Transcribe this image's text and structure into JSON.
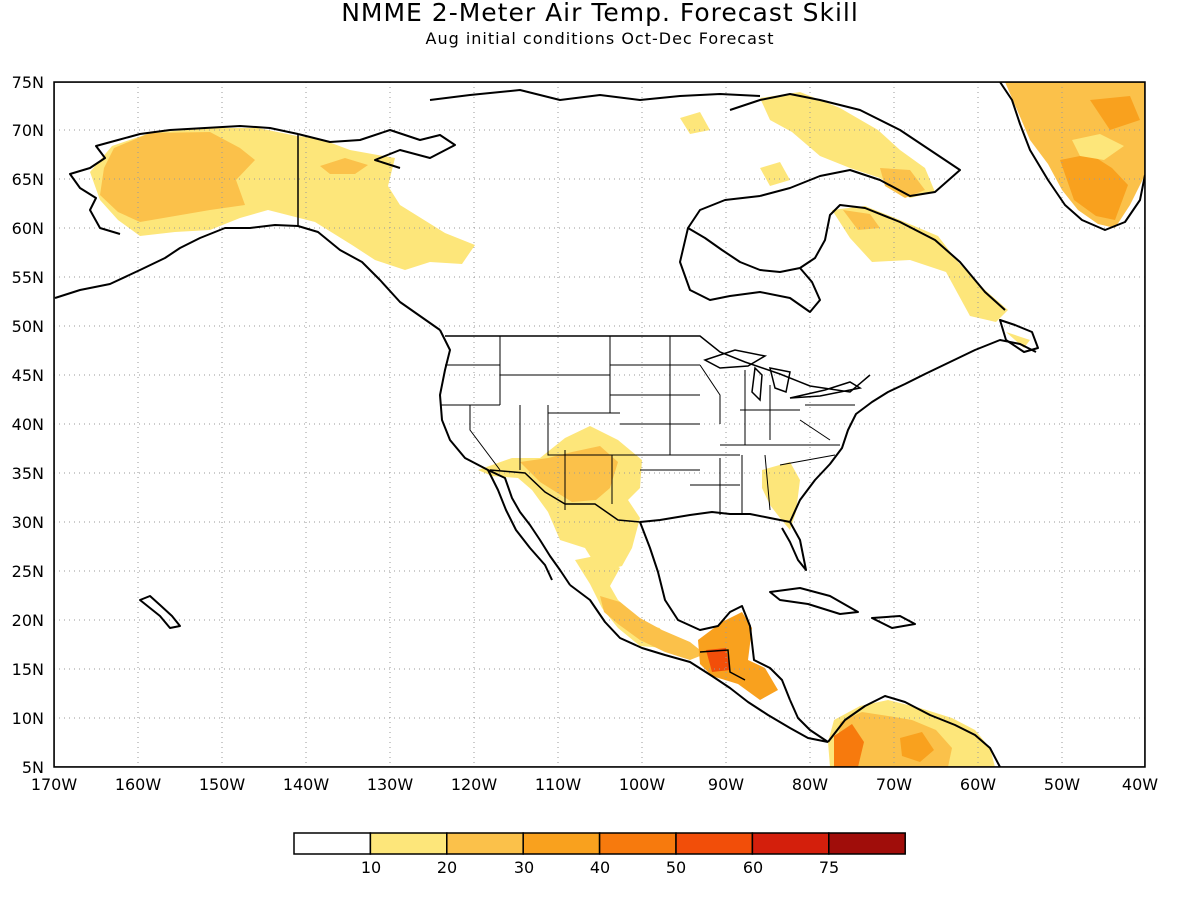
{
  "header": {
    "title": "NMME 2-Meter Air Temp. Forecast Skill",
    "subtitle": "Aug initial conditions  Oct-Dec Forecast"
  },
  "map": {
    "projection": "cylindrical",
    "lon_range": [
      -170,
      -40
    ],
    "lat_range": [
      5,
      75
    ],
    "lat_labels": [
      "5N",
      "10N",
      "15N",
      "20N",
      "25N",
      "30N",
      "35N",
      "40N",
      "45N",
      "50N",
      "55N",
      "60N",
      "65N",
      "70N",
      "75N"
    ],
    "lon_labels": [
      "170W",
      "160W",
      "150W",
      "140W",
      "130W",
      "120W",
      "110W",
      "100W",
      "90W",
      "80W",
      "70W",
      "60W",
      "50W",
      "40W"
    ],
    "gridlines": "dotted",
    "shaded_regions": [
      {
        "region": "Alaska / Yukon",
        "level": "10-20"
      },
      {
        "region": "Western Alaska interior",
        "level": "20-30"
      },
      {
        "region": "Southwest US / Colorado Plateau",
        "level": "10-30"
      },
      {
        "region": "Southeast US (Georgia / Florida)",
        "level": "10-20"
      },
      {
        "region": "Mexico",
        "level": "10-30"
      },
      {
        "region": "Central America (Guatemala / Honduras)",
        "level": "30-50"
      },
      {
        "region": "Northern South America",
        "level": "20-50"
      },
      {
        "region": "Labrador / Quebec coast",
        "level": "10-20"
      },
      {
        "region": "Baffin Island / Greenland",
        "level": "10-40"
      }
    ]
  },
  "colorbar": {
    "labels": [
      "10",
      "20",
      "30",
      "40",
      "50",
      "60",
      "75"
    ],
    "colors": [
      "#ffffff",
      "#fde67a",
      "#fbc14a",
      "#f9a11e",
      "#f77a0d",
      "#f24e09",
      "#d41f0c",
      "#a00d0a"
    ]
  }
}
